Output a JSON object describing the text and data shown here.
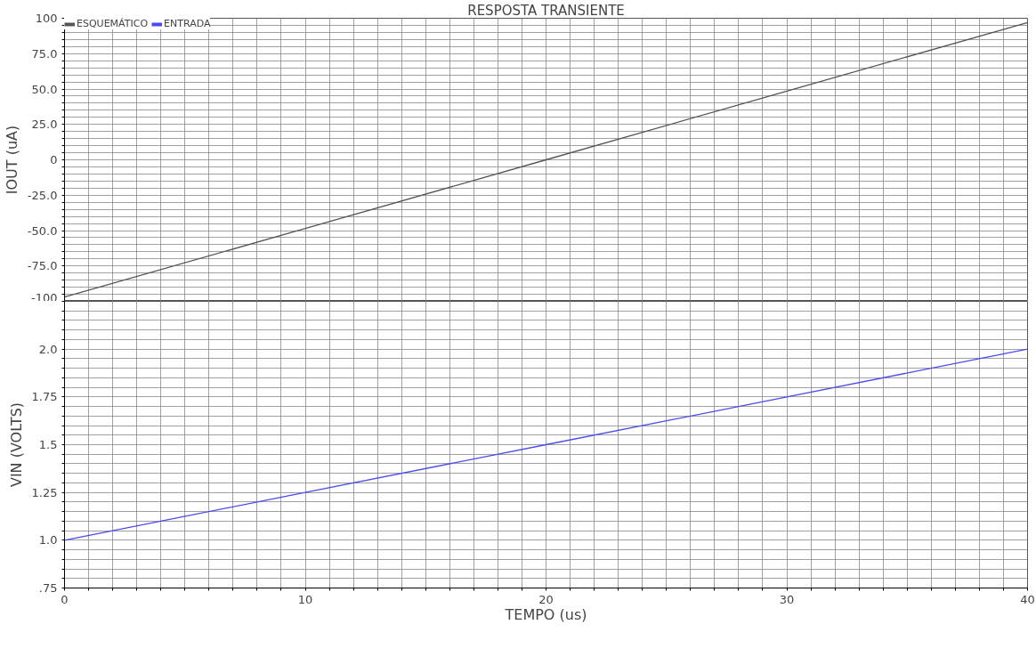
{
  "chart_data": [
    {
      "type": "line",
      "title": "RESPOSTA TRANSIENTE",
      "ylabel": "IOUT (uA)",
      "x": [
        0,
        10,
        20,
        30,
        40
      ],
      "series": [
        {
          "name": "ESQUEMÁTICO",
          "color": "#555555",
          "values": [
            -97,
            -48.5,
            0,
            48.5,
            97
          ]
        }
      ],
      "xlim": [
        0,
        40
      ],
      "xticks": [
        0,
        {
          "value": 1,
          "label": null
        },
        {
          "value": 2,
          "label": null
        },
        {
          "value": 3,
          "label": null
        },
        {
          "value": 4,
          "label": null
        },
        {
          "value": 5,
          "label": null
        },
        {
          "value": 6,
          "label": null
        },
        {
          "value": 7,
          "label": null
        },
        {
          "value": 8,
          "label": null
        },
        {
          "value": 9,
          "label": null
        },
        10,
        {
          "value": 11,
          "label": null
        },
        {
          "value": 12,
          "label": null
        },
        {
          "value": 13,
          "label": null
        },
        {
          "value": 14,
          "label": null
        },
        {
          "value": 15,
          "label": null
        },
        {
          "value": 16,
          "label": null
        },
        {
          "value": 17,
          "label": null
        },
        {
          "value": 18,
          "label": null
        },
        {
          "value": 19,
          "label": null
        },
        20,
        {
          "value": 21,
          "label": null
        },
        {
          "value": 22,
          "label": null
        },
        {
          "value": 23,
          "label": null
        },
        {
          "value": 24,
          "label": null
        },
        {
          "value": 25,
          "label": null
        },
        {
          "value": 26,
          "label": null
        },
        {
          "value": 27,
          "label": null
        },
        {
          "value": 28,
          "label": null
        },
        {
          "value": 29,
          "label": null
        },
        30,
        {
          "value": 31,
          "label": null
        },
        {
          "value": 32,
          "label": null
        },
        {
          "value": 33,
          "label": null
        },
        {
          "value": 34,
          "label": null
        },
        {
          "value": 35,
          "label": null
        },
        {
          "value": 36,
          "label": null
        },
        {
          "value": 37,
          "label": null
        },
        {
          "value": 38,
          "label": null
        },
        {
          "value": 39,
          "label": null
        },
        40
      ],
      "ylim": [
        -100,
        100
      ],
      "yticks": [
        -100,
        {
          "value": -95,
          "label": null
        },
        {
          "value": -90,
          "label": null
        },
        {
          "value": -85,
          "label": null
        },
        {
          "value": -80,
          "label": null
        },
        {
          "value": -75,
          "label": "-75.0"
        },
        {
          "value": -70,
          "label": null
        },
        {
          "value": -65,
          "label": null
        },
        {
          "value": -60,
          "label": null
        },
        {
          "value": -55,
          "label": null
        },
        {
          "value": -50,
          "label": "-50.0"
        },
        {
          "value": -45,
          "label": null
        },
        {
          "value": -40,
          "label": null
        },
        {
          "value": -35,
          "label": null
        },
        {
          "value": -30,
          "label": null
        },
        {
          "value": -25,
          "label": "-25.0"
        },
        {
          "value": -20,
          "label": null
        },
        {
          "value": -15,
          "label": null
        },
        {
          "value": -10,
          "label": null
        },
        {
          "value": -5,
          "label": null
        },
        0,
        {
          "value": 5,
          "label": null
        },
        {
          "value": 10,
          "label": null
        },
        {
          "value": 15,
          "label": null
        },
        {
          "value": 20,
          "label": null
        },
        {
          "value": 25,
          "label": "25.0"
        },
        {
          "value": 30,
          "label": null
        },
        {
          "value": 35,
          "label": null
        },
        {
          "value": 40,
          "label": null
        },
        {
          "value": 45,
          "label": null
        },
        {
          "value": 50,
          "label": "50.0"
        },
        {
          "value": 55,
          "label": null
        },
        {
          "value": 60,
          "label": null
        },
        {
          "value": 65,
          "label": null
        },
        {
          "value": 70,
          "label": null
        },
        {
          "value": 75,
          "label": "75.0"
        },
        {
          "value": 80,
          "label": null
        },
        {
          "value": 85,
          "label": null
        },
        {
          "value": 90,
          "label": null
        },
        {
          "value": 95,
          "label": null
        },
        100
      ],
      "tick_labels": "y",
      "grid": true,
      "legend": "top left"
    },
    {
      "type": "line",
      "xlabel": "TEMPO (us)",
      "ylabel": "VIN (VOLTS)",
      "x": [
        0,
        10,
        20,
        30,
        40
      ],
      "series": [
        {
          "name": "ENTRADA",
          "color": "#4a4af0",
          "values": [
            1,
            1.25,
            1.5,
            1.75,
            2
          ]
        }
      ],
      "xlim": [
        0,
        40
      ],
      "xticks": [
        0,
        {
          "value": 1,
          "label": null
        },
        {
          "value": 2,
          "label": null
        },
        {
          "value": 3,
          "label": null
        },
        {
          "value": 4,
          "label": null
        },
        {
          "value": 5,
          "label": null
        },
        {
          "value": 6,
          "label": null
        },
        {
          "value": 7,
          "label": null
        },
        {
          "value": 8,
          "label": null
        },
        {
          "value": 9,
          "label": null
        },
        10,
        {
          "value": 11,
          "label": null
        },
        {
          "value": 12,
          "label": null
        },
        {
          "value": 13,
          "label": null
        },
        {
          "value": 14,
          "label": null
        },
        {
          "value": 15,
          "label": null
        },
        {
          "value": 16,
          "label": null
        },
        {
          "value": 17,
          "label": null
        },
        {
          "value": 18,
          "label": null
        },
        {
          "value": 19,
          "label": null
        },
        20,
        {
          "value": 21,
          "label": null
        },
        {
          "value": 22,
          "label": null
        },
        {
          "value": 23,
          "label": null
        },
        {
          "value": 24,
          "label": null
        },
        {
          "value": 25,
          "label": null
        },
        {
          "value": 26,
          "label": null
        },
        {
          "value": 27,
          "label": null
        },
        {
          "value": 28,
          "label": null
        },
        {
          "value": 29,
          "label": null
        },
        30,
        {
          "value": 31,
          "label": null
        },
        {
          "value": 32,
          "label": null
        },
        {
          "value": 33,
          "label": null
        },
        {
          "value": 34,
          "label": null
        },
        {
          "value": 35,
          "label": null
        },
        {
          "value": 36,
          "label": null
        },
        {
          "value": 37,
          "label": null
        },
        {
          "value": 38,
          "label": null
        },
        {
          "value": 39,
          "label": null
        },
        40
      ],
      "ylim": [
        0.75,
        2.25
      ],
      "yticks": [
        {
          "value": 0.75,
          "label": ".75"
        },
        {
          "value": 0.8,
          "label": null
        },
        {
          "value": 0.85,
          "label": null
        },
        {
          "value": 0.9,
          "label": null
        },
        {
          "value": 0.95,
          "label": null
        },
        {
          "value": 1,
          "label": "1.0"
        },
        {
          "value": 1.05,
          "label": null
        },
        {
          "value": 1.1,
          "label": null
        },
        {
          "value": 1.15,
          "label": null
        },
        {
          "value": 1.2,
          "label": null
        },
        1.25,
        {
          "value": 1.3,
          "label": null
        },
        {
          "value": 1.35,
          "label": null
        },
        {
          "value": 1.4,
          "label": null
        },
        {
          "value": 1.45,
          "label": null
        },
        1.5,
        {
          "value": 1.55,
          "label": null
        },
        {
          "value": 1.6,
          "label": null
        },
        {
          "value": 1.65,
          "label": null
        },
        {
          "value": 1.7,
          "label": null
        },
        1.75,
        {
          "value": 1.8,
          "label": null
        },
        {
          "value": 1.85,
          "label": null
        },
        {
          "value": 1.9,
          "label": null
        },
        {
          "value": 1.95,
          "label": null
        },
        {
          "value": 2,
          "label": "2.0"
        },
        {
          "value": 2.05,
          "label": null
        },
        {
          "value": 2.1,
          "label": null
        },
        {
          "value": 2.15,
          "label": null
        },
        {
          "value": 2.2,
          "label": null
        },
        {
          "value": 2.25,
          "label": null
        }
      ],
      "grid": true,
      "legend": "top left"
    }
  ]
}
